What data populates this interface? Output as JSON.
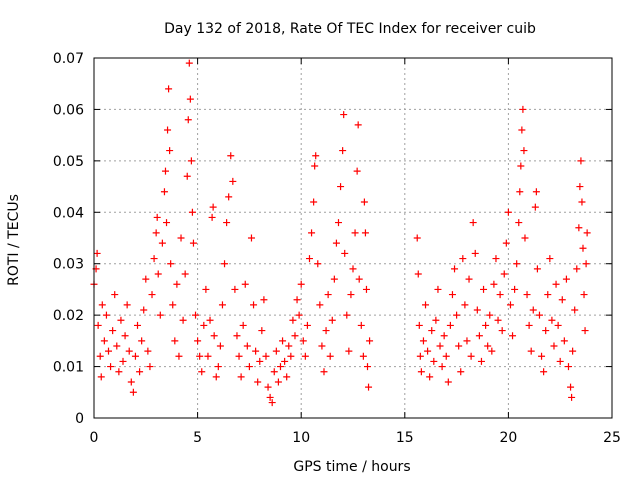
{
  "chart_data": {
    "type": "scatter",
    "title": "Day 132 of 2018, Rate Of TEC Index for receiver cuib",
    "xlabel": "GPS time / hours",
    "ylabel": "ROTI / TECUs",
    "xlim": [
      0,
      25
    ],
    "ylim": [
      0,
      0.07
    ],
    "xticks": [
      0,
      5,
      10,
      15,
      20,
      25
    ],
    "xtick_labels": [
      "0",
      "5",
      "10",
      "15",
      "20",
      "25"
    ],
    "yticks": [
      0,
      0.01,
      0.02,
      0.03,
      0.04,
      0.05,
      0.06,
      0.07
    ],
    "ytick_labels": [
      "0",
      "0.01",
      "0.02",
      "0.03",
      "0.04",
      "0.05",
      "0.06",
      "0.07"
    ],
    "grid": true,
    "marker": "+",
    "color": "#ff0000",
    "series": [
      {
        "name": "ROTI",
        "points": [
          [
            0.0,
            0.026
          ],
          [
            0.1,
            0.029
          ],
          [
            0.15,
            0.032
          ],
          [
            0.2,
            0.018
          ],
          [
            0.3,
            0.012
          ],
          [
            0.35,
            0.008
          ],
          [
            0.4,
            0.022
          ],
          [
            0.5,
            0.015
          ],
          [
            0.6,
            0.02
          ],
          [
            0.7,
            0.013
          ],
          [
            0.8,
            0.01
          ],
          [
            0.9,
            0.017
          ],
          [
            1.0,
            0.024
          ],
          [
            1.1,
            0.014
          ],
          [
            1.2,
            0.009
          ],
          [
            1.3,
            0.019
          ],
          [
            1.4,
            0.011
          ],
          [
            1.5,
            0.016
          ],
          [
            1.6,
            0.022
          ],
          [
            1.7,
            0.013
          ],
          [
            1.8,
            0.007
          ],
          [
            1.9,
            0.005
          ],
          [
            2.0,
            0.012
          ],
          [
            2.1,
            0.018
          ],
          [
            2.2,
            0.009
          ],
          [
            2.3,
            0.015
          ],
          [
            2.4,
            0.021
          ],
          [
            2.5,
            0.027
          ],
          [
            2.6,
            0.013
          ],
          [
            2.7,
            0.01
          ],
          [
            2.8,
            0.024
          ],
          [
            2.9,
            0.031
          ],
          [
            3.0,
            0.036
          ],
          [
            3.05,
            0.039
          ],
          [
            3.1,
            0.028
          ],
          [
            3.2,
            0.02
          ],
          [
            3.3,
            0.034
          ],
          [
            3.4,
            0.044
          ],
          [
            3.45,
            0.048
          ],
          [
            3.5,
            0.038
          ],
          [
            3.55,
            0.056
          ],
          [
            3.6,
            0.064
          ],
          [
            3.65,
            0.052
          ],
          [
            3.7,
            0.03
          ],
          [
            3.8,
            0.022
          ],
          [
            3.9,
            0.015
          ],
          [
            4.0,
            0.026
          ],
          [
            4.1,
            0.012
          ],
          [
            4.2,
            0.035
          ],
          [
            4.3,
            0.019
          ],
          [
            4.4,
            0.028
          ],
          [
            4.5,
            0.047
          ],
          [
            4.55,
            0.058
          ],
          [
            4.6,
            0.069
          ],
          [
            4.65,
            0.062
          ],
          [
            4.7,
            0.05
          ],
          [
            4.75,
            0.04
          ],
          [
            4.8,
            0.034
          ],
          [
            4.9,
            0.02
          ],
          [
            5.0,
            0.015
          ],
          [
            5.1,
            0.012
          ],
          [
            5.2,
            0.009
          ],
          [
            5.3,
            0.018
          ],
          [
            5.4,
            0.025
          ],
          [
            5.5,
            0.012
          ],
          [
            5.6,
            0.019
          ],
          [
            5.7,
            0.039
          ],
          [
            5.75,
            0.041
          ],
          [
            5.8,
            0.016
          ],
          [
            5.9,
            0.008
          ],
          [
            6.0,
            0.01
          ],
          [
            6.1,
            0.014
          ],
          [
            6.2,
            0.022
          ],
          [
            6.3,
            0.03
          ],
          [
            6.4,
            0.038
          ],
          [
            6.5,
            0.043
          ],
          [
            6.6,
            0.051
          ],
          [
            6.7,
            0.046
          ],
          [
            6.8,
            0.025
          ],
          [
            6.9,
            0.016
          ],
          [
            7.0,
            0.012
          ],
          [
            7.1,
            0.008
          ],
          [
            7.2,
            0.018
          ],
          [
            7.3,
            0.026
          ],
          [
            7.4,
            0.014
          ],
          [
            7.5,
            0.01
          ],
          [
            7.6,
            0.035
          ],
          [
            7.7,
            0.022
          ],
          [
            7.8,
            0.013
          ],
          [
            7.9,
            0.007
          ],
          [
            8.0,
            0.011
          ],
          [
            8.1,
            0.017
          ],
          [
            8.2,
            0.023
          ],
          [
            8.3,
            0.012
          ],
          [
            8.4,
            0.006
          ],
          [
            8.5,
            0.004
          ],
          [
            8.6,
            0.003
          ],
          [
            8.7,
            0.009
          ],
          [
            8.8,
            0.013
          ],
          [
            8.9,
            0.007
          ],
          [
            9.0,
            0.01
          ],
          [
            9.1,
            0.015
          ],
          [
            9.2,
            0.011
          ],
          [
            9.3,
            0.008
          ],
          [
            9.4,
            0.014
          ],
          [
            9.5,
            0.012
          ],
          [
            9.6,
            0.019
          ],
          [
            9.7,
            0.016
          ],
          [
            9.8,
            0.023
          ],
          [
            9.9,
            0.02
          ],
          [
            10.0,
            0.026
          ],
          [
            10.1,
            0.015
          ],
          [
            10.2,
            0.012
          ],
          [
            10.3,
            0.018
          ],
          [
            10.4,
            0.031
          ],
          [
            10.5,
            0.036
          ],
          [
            10.6,
            0.042
          ],
          [
            10.65,
            0.049
          ],
          [
            10.7,
            0.051
          ],
          [
            10.8,
            0.03
          ],
          [
            10.9,
            0.022
          ],
          [
            11.0,
            0.014
          ],
          [
            11.1,
            0.009
          ],
          [
            11.2,
            0.017
          ],
          [
            11.3,
            0.024
          ],
          [
            11.4,
            0.012
          ],
          [
            11.5,
            0.019
          ],
          [
            11.6,
            0.027
          ],
          [
            11.7,
            0.034
          ],
          [
            11.8,
            0.038
          ],
          [
            11.9,
            0.045
          ],
          [
            12.0,
            0.052
          ],
          [
            12.05,
            0.059
          ],
          [
            12.1,
            0.032
          ],
          [
            12.2,
            0.02
          ],
          [
            12.3,
            0.013
          ],
          [
            12.4,
            0.024
          ],
          [
            12.5,
            0.029
          ],
          [
            12.6,
            0.036
          ],
          [
            12.7,
            0.048
          ],
          [
            12.75,
            0.057
          ],
          [
            12.8,
            0.027
          ],
          [
            12.9,
            0.018
          ],
          [
            13.0,
            0.012
          ],
          [
            13.05,
            0.042
          ],
          [
            13.1,
            0.036
          ],
          [
            13.15,
            0.025
          ],
          [
            13.2,
            0.01
          ],
          [
            13.25,
            0.006
          ],
          [
            13.3,
            0.015
          ],
          [
            15.6,
            0.035
          ],
          [
            15.65,
            0.028
          ],
          [
            15.7,
            0.018
          ],
          [
            15.75,
            0.012
          ],
          [
            15.8,
            0.009
          ],
          [
            15.9,
            0.015
          ],
          [
            16.0,
            0.022
          ],
          [
            16.1,
            0.013
          ],
          [
            16.2,
            0.008
          ],
          [
            16.3,
            0.017
          ],
          [
            16.4,
            0.011
          ],
          [
            16.5,
            0.019
          ],
          [
            16.6,
            0.025
          ],
          [
            16.7,
            0.014
          ],
          [
            16.8,
            0.01
          ],
          [
            16.9,
            0.016
          ],
          [
            17.0,
            0.012
          ],
          [
            17.1,
            0.007
          ],
          [
            17.2,
            0.018
          ],
          [
            17.3,
            0.024
          ],
          [
            17.4,
            0.029
          ],
          [
            17.5,
            0.02
          ],
          [
            17.6,
            0.014
          ],
          [
            17.7,
            0.009
          ],
          [
            17.8,
            0.031
          ],
          [
            17.9,
            0.022
          ],
          [
            18.0,
            0.015
          ],
          [
            18.1,
            0.027
          ],
          [
            18.2,
            0.012
          ],
          [
            18.3,
            0.038
          ],
          [
            18.4,
            0.032
          ],
          [
            18.5,
            0.021
          ],
          [
            18.6,
            0.016
          ],
          [
            18.7,
            0.011
          ],
          [
            18.8,
            0.025
          ],
          [
            18.9,
            0.018
          ],
          [
            19.0,
            0.014
          ],
          [
            19.1,
            0.02
          ],
          [
            19.2,
            0.013
          ],
          [
            19.3,
            0.026
          ],
          [
            19.4,
            0.031
          ],
          [
            19.5,
            0.019
          ],
          [
            19.6,
            0.024
          ],
          [
            19.7,
            0.017
          ],
          [
            19.8,
            0.028
          ],
          [
            19.9,
            0.034
          ],
          [
            20.0,
            0.04
          ],
          [
            20.1,
            0.022
          ],
          [
            20.2,
            0.016
          ],
          [
            20.3,
            0.025
          ],
          [
            20.4,
            0.03
          ],
          [
            20.5,
            0.038
          ],
          [
            20.55,
            0.044
          ],
          [
            20.6,
            0.049
          ],
          [
            20.65,
            0.056
          ],
          [
            20.7,
            0.06
          ],
          [
            20.75,
            0.052
          ],
          [
            20.8,
            0.035
          ],
          [
            20.9,
            0.024
          ],
          [
            21.0,
            0.018
          ],
          [
            21.1,
            0.013
          ],
          [
            21.2,
            0.021
          ],
          [
            21.3,
            0.041
          ],
          [
            21.35,
            0.044
          ],
          [
            21.4,
            0.029
          ],
          [
            21.5,
            0.02
          ],
          [
            21.6,
            0.012
          ],
          [
            21.7,
            0.009
          ],
          [
            21.8,
            0.017
          ],
          [
            21.9,
            0.024
          ],
          [
            22.0,
            0.031
          ],
          [
            22.1,
            0.019
          ],
          [
            22.2,
            0.014
          ],
          [
            22.3,
            0.026
          ],
          [
            22.4,
            0.018
          ],
          [
            22.5,
            0.011
          ],
          [
            22.6,
            0.023
          ],
          [
            22.7,
            0.015
          ],
          [
            22.8,
            0.027
          ],
          [
            22.9,
            0.01
          ],
          [
            23.0,
            0.006
          ],
          [
            23.05,
            0.004
          ],
          [
            23.1,
            0.013
          ],
          [
            23.2,
            0.021
          ],
          [
            23.3,
            0.029
          ],
          [
            23.4,
            0.037
          ],
          [
            23.45,
            0.045
          ],
          [
            23.5,
            0.05
          ],
          [
            23.55,
            0.042
          ],
          [
            23.6,
            0.033
          ],
          [
            23.65,
            0.024
          ],
          [
            23.7,
            0.017
          ],
          [
            23.75,
            0.03
          ],
          [
            23.8,
            0.036
          ]
        ]
      }
    ]
  }
}
